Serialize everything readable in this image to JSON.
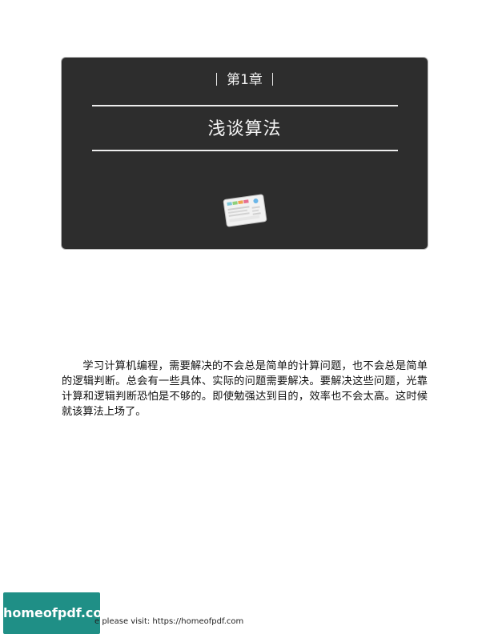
{
  "chapter": {
    "label": "第1章",
    "title": "浅谈算法"
  },
  "body": {
    "paragraph": "学习计算机编程，需要解决的不会总是简单的计算问题，也不会总是简单的逻辑判断。总会有一些具体、实际的问题需要解决。要解决这些问题，光靠计算和逻辑判断恐怕是不够的。即使勉强达到目的，效率也不会太高。这时候就该算法上场了。"
  },
  "footer": {
    "logo_text": "homeofpdf.com",
    "note": "e please visit: https://homeofpdf.com"
  },
  "colors": {
    "chapter_background": "#2d2d2d",
    "logo_background": "#1f8f86"
  },
  "icons": {
    "chapter_icon": "dashboard-card-icon"
  }
}
